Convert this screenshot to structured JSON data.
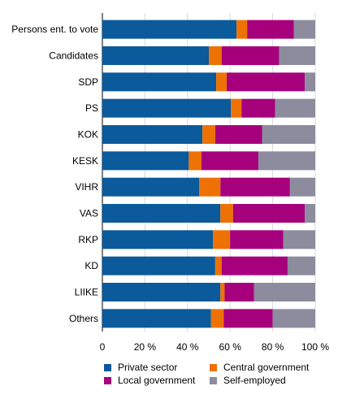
{
  "chart_data": {
    "type": "bar",
    "orientation": "horizontal",
    "stacked": "percent",
    "categories": [
      "Persons ent. to vote",
      "Candidates",
      "SDP",
      "PS",
      "KOK",
      "KESK",
      "VIHR",
      "VAS",
      "RKP",
      "KD",
      "LIIKE",
      "Others"
    ],
    "series": [
      {
        "name": "Private sector",
        "color": "#0a5a9c",
        "values": [
          63,
          50,
          54,
          61,
          47,
          41,
          46,
          56,
          52,
          53,
          56,
          51
        ]
      },
      {
        "name": "Central government",
        "color": "#ee7203",
        "values": [
          5,
          6,
          5,
          5,
          6,
          6,
          10,
          6,
          8,
          3,
          2,
          6
        ]
      },
      {
        "name": "Local government",
        "color": "#a6007c",
        "values": [
          22,
          27,
          37,
          16,
          22,
          27,
          33,
          34,
          25,
          31,
          14,
          23
        ]
      },
      {
        "name": "Self-employed",
        "color": "#8c8c9e",
        "values": [
          10,
          17,
          5,
          19,
          25,
          27,
          12,
          5,
          15,
          13,
          29,
          20
        ]
      }
    ],
    "xlim": [
      0,
      100
    ],
    "xticks": [
      "0",
      "20 %",
      "40 %",
      "60 %",
      "80 %",
      "100 %"
    ],
    "grid": true,
    "legend_position": "bottom"
  }
}
